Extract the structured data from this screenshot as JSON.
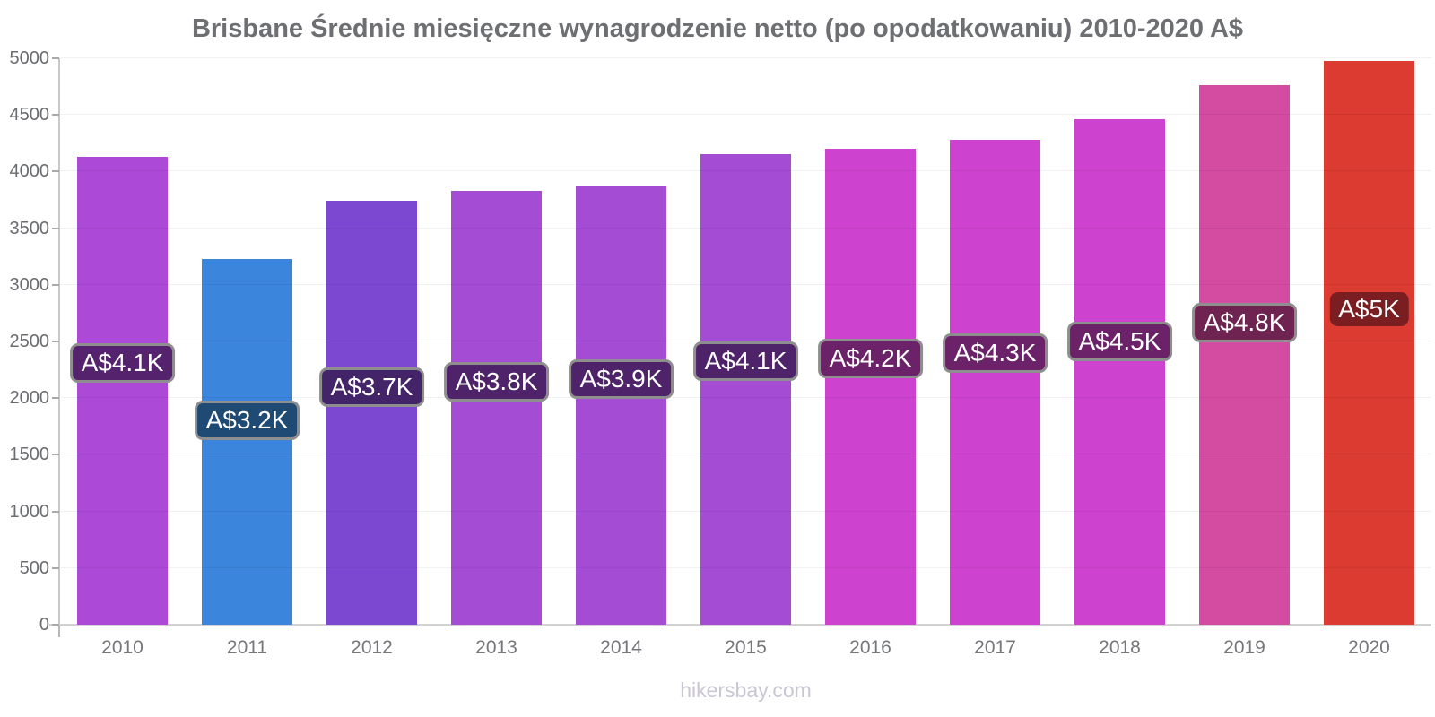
{
  "footer": "hikersbay.com",
  "chart_data": {
    "type": "bar",
    "title": "Brisbane Średnie miesięczne wynagrodzenie netto (po opodatkowaniu) 2010-2020 A$",
    "xlabel": "",
    "ylabel": "",
    "categories": [
      "2010",
      "2011",
      "2012",
      "2013",
      "2014",
      "2015",
      "2016",
      "2017",
      "2018",
      "2019",
      "2020"
    ],
    "values": [
      4130,
      3230,
      3740,
      3830,
      3870,
      4150,
      4200,
      4280,
      4460,
      4760,
      4980
    ],
    "value_labels": [
      "A$4.1K",
      "A$3.2K",
      "A$3.7K",
      "A$3.8K",
      "A$3.9K",
      "A$4.1K",
      "A$4.2K",
      "A$4.3K",
      "A$4.5K",
      "A$4.8K",
      "A$5K"
    ],
    "bar_colors": [
      "#ac49d6",
      "#3b85dc",
      "#7c48d2",
      "#a54cd5",
      "#a54cd5",
      "#a54cd5",
      "#cd43cf",
      "#cd43cf",
      "#cd43cf",
      "#d44ba2",
      "#dc3b31"
    ],
    "value_label_bg": [
      "#55226e",
      "#1e4a73",
      "#432468",
      "#4e2369",
      "#4e2369",
      "#4e2369",
      "#6b2268",
      "#6b2268",
      "#6b2268",
      "#6f2350",
      "#7a1e21"
    ],
    "value_label_border": [
      true,
      true,
      true,
      true,
      true,
      true,
      true,
      true,
      true,
      true,
      false
    ],
    "value_label_border_color": "#8e8e8e",
    "value_label_text_color": "#ffffff",
    "ylim": [
      0,
      5000
    ],
    "ytick_step": 500,
    "yticks": [
      0,
      500,
      1000,
      1500,
      2000,
      2500,
      3000,
      3500,
      4000,
      4500,
      5000
    ],
    "grid": "horizontal",
    "legend": "none"
  }
}
